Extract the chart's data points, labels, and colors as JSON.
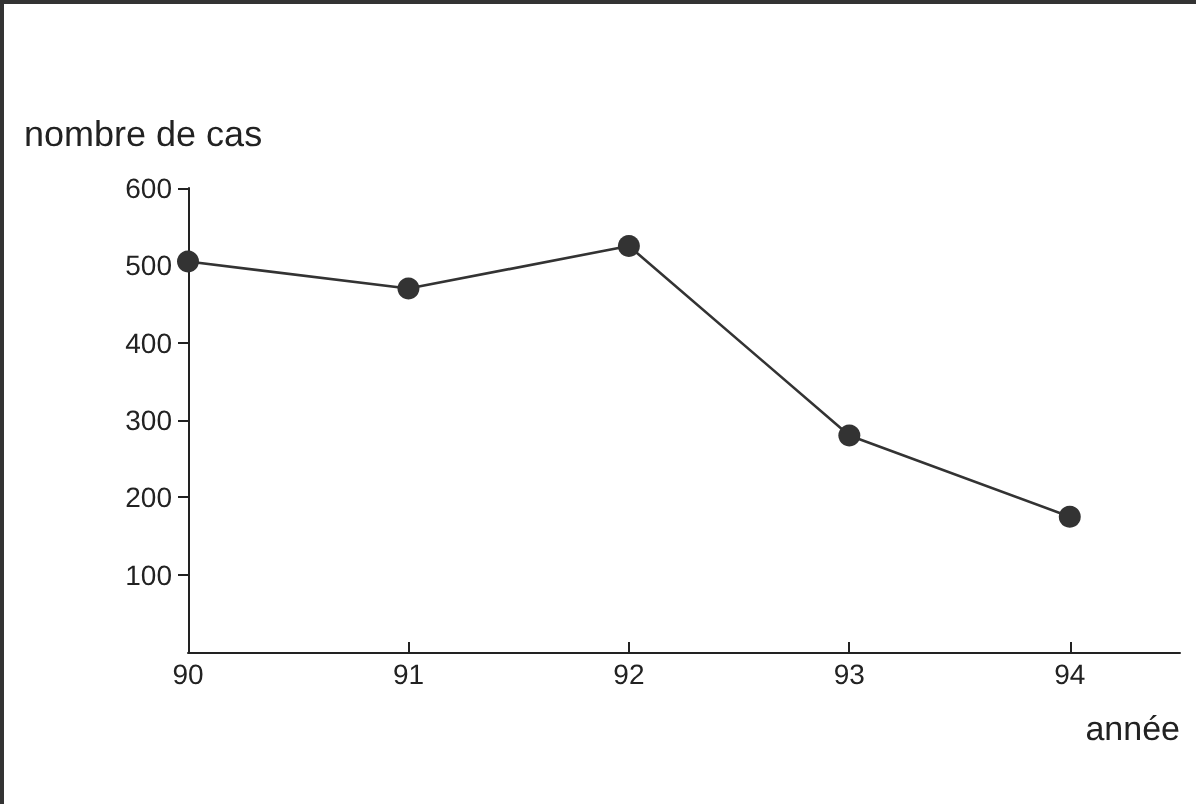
{
  "chart_data": {
    "type": "line",
    "xlabel": "année",
    "ylabel": "nombre de cas",
    "x": [
      90,
      91,
      92,
      93,
      94
    ],
    "series": [
      {
        "color": "#333333",
        "values": [
          505,
          470,
          525,
          280,
          175
        ]
      }
    ],
    "xlim": [
      90,
      94.5
    ],
    "xticks": [
      90,
      91,
      92,
      93,
      94
    ],
    "ylim": [
      0,
      600
    ],
    "yticks": [
      100,
      200,
      300,
      400,
      500,
      600
    ],
    "marker": "circle",
    "line_style": "solid"
  }
}
